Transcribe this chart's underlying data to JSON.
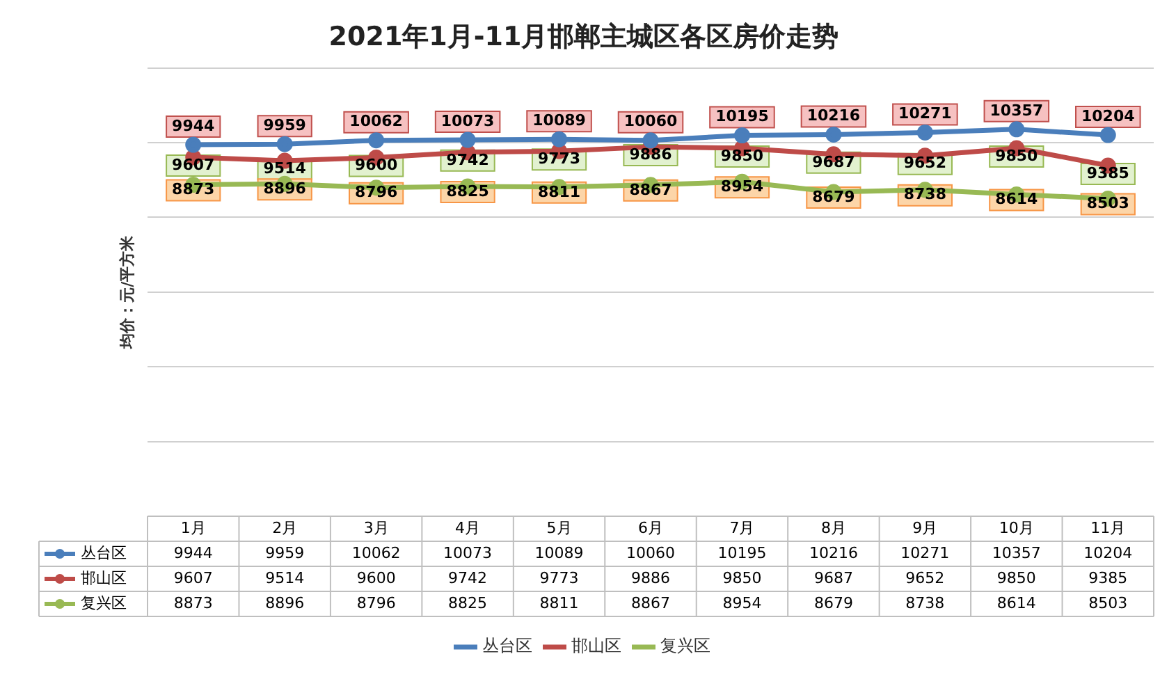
{
  "chart_data": {
    "type": "line",
    "title": "2021年1月-11月邯郸主城区各区房价走势",
    "ylabel": "均价：元/平方米",
    "categories": [
      "1月",
      "2月",
      "3月",
      "4月",
      "5月",
      "6月",
      "7月",
      "8月",
      "9月",
      "10月",
      "11月"
    ],
    "series": [
      {
        "name": "丛台区",
        "color": "#4a7ebb",
        "values": [
          9944,
          9959,
          10062,
          10073,
          10089,
          10060,
          10195,
          10216,
          10271,
          10357,
          10204
        ],
        "value_labels": [
          "9944",
          "9959",
          "10062",
          "10073",
          "10089",
          "10060",
          "10195",
          "10216",
          "10271",
          "10357",
          "10204"
        ]
      },
      {
        "name": "邯山区",
        "color": "#be4b48",
        "values": [
          9607,
          9514,
          9600,
          9742,
          9773,
          9886,
          9850,
          9687,
          9652,
          9850,
          9385
        ],
        "value_labels": [
          "9607",
          "9514",
          "9600",
          "9742",
          "9773",
          "9886",
          "9850",
          "9687",
          "9652",
          "9850",
          "9385"
        ]
      },
      {
        "name": "复兴区",
        "color": "#98b954",
        "values": [
          8873,
          8896,
          8796,
          8825,
          8811,
          8867,
          8954,
          8679,
          8738,
          8614,
          8503
        ],
        "value_labels": [
          "8873",
          "8896",
          "8796",
          "8825",
          "8811",
          "8867",
          "8954",
          "8679",
          "8738",
          "8614",
          "8503"
        ]
      }
    ],
    "ylim": [
      0,
      12000
    ],
    "yticks": [
      {
        "value": 0,
        "label": null
      },
      {
        "value": 2000,
        "label": null
      },
      {
        "value": 4000,
        "label": null
      },
      {
        "value": 6000,
        "label": null
      },
      {
        "value": 8000,
        "label": null
      },
      {
        "value": 10000,
        "label": null
      },
      {
        "value": 12000,
        "label": null
      }
    ],
    "annotations": [
      "9944",
      "9959",
      "10062",
      "10073",
      "10089",
      "10060",
      "10195",
      "10216",
      "10271",
      "10357",
      "10204",
      "9607",
      "9514",
      "9600",
      "9742",
      "9773",
      "9886",
      "9850",
      "9687",
      "9652",
      "9850",
      "9385",
      "8873",
      "8896",
      "8796",
      "8825",
      "8811",
      "8867",
      "8954",
      "8679",
      "8738",
      "8614",
      "8503"
    ],
    "tick_labels": "x",
    "grid": "y",
    "legend": "bottom",
    "marker": "circle",
    "line_style": "solid"
  }
}
